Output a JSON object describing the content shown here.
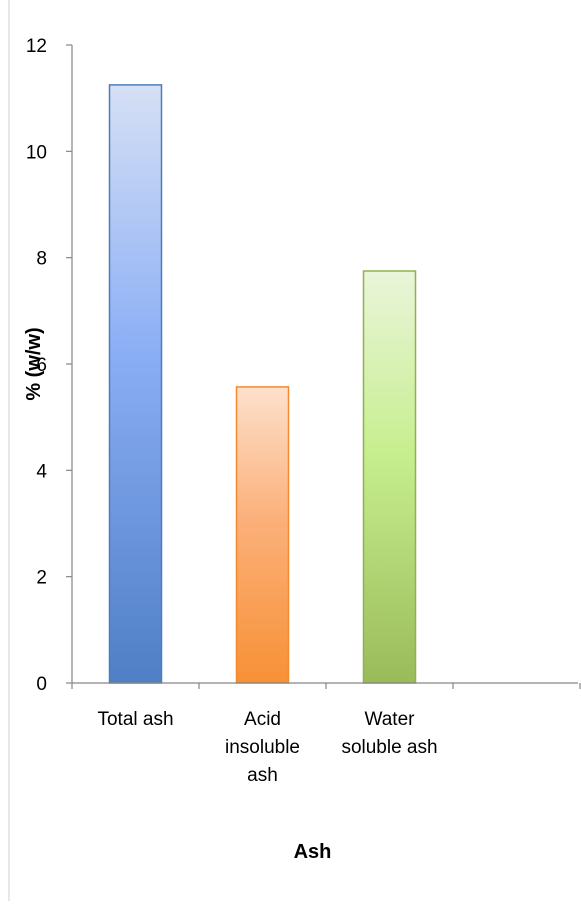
{
  "chart_data": {
    "type": "bar",
    "categories": [
      [
        "Total ash"
      ],
      [
        "Acid",
        "insoluble",
        "ash"
      ],
      [
        "Water",
        "soluble ash"
      ]
    ],
    "values": [
      11.25,
      5.57,
      7.75
    ],
    "xlabel": "Ash",
    "ylabel": "% (w/w)",
    "ylim": [
      0,
      12
    ],
    "yticks": [
      0,
      2,
      4,
      6,
      8,
      10,
      12
    ],
    "grid": false,
    "legend": "none",
    "colors": [
      {
        "top": "#d6e0f5",
        "mid": "#8aaef5",
        "bottom": "#4f7fc6",
        "edge": "#4a7ebb"
      },
      {
        "top": "#fde0cc",
        "mid": "#fbb07a",
        "bottom": "#f79136",
        "edge": "#f38a2e"
      },
      {
        "top": "#eaf5da",
        "mid": "#c6ee8e",
        "bottom": "#9bbb59",
        "edge": "#8fb24f"
      }
    ]
  }
}
